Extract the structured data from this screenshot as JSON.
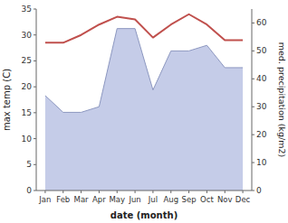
{
  "chart_data": {
    "type": "line",
    "categories": [
      "Jan",
      "Feb",
      "Mar",
      "Apr",
      "May",
      "Jun",
      "Jul",
      "Aug",
      "Sep",
      "Oct",
      "Nov",
      "Dec"
    ],
    "xlabel": "date (month)",
    "ylabel": "max temp (C)",
    "y2label": "med. precipitation (kg/m2)",
    "ylim": [
      0,
      35
    ],
    "yticks": [
      0,
      5,
      10,
      15,
      20,
      25,
      30,
      35
    ],
    "y2lim": [
      0,
      65
    ],
    "y2ticks": [
      0,
      10,
      20,
      30,
      40,
      50,
      60
    ],
    "grid": false,
    "series": [
      {
        "type": "area",
        "axis": "y2",
        "color": "#c5cce8",
        "values": [
          34,
          28,
          28,
          30,
          58,
          58,
          36,
          50,
          50,
          52,
          44,
          44
        ]
      },
      {
        "type": "line",
        "color": "#c0504d",
        "values": [
          28.5,
          28.5,
          30.0,
          32.0,
          33.5,
          33.0,
          29.5,
          32.0,
          34.0,
          32.0,
          29.0,
          29.0
        ]
      }
    ]
  }
}
